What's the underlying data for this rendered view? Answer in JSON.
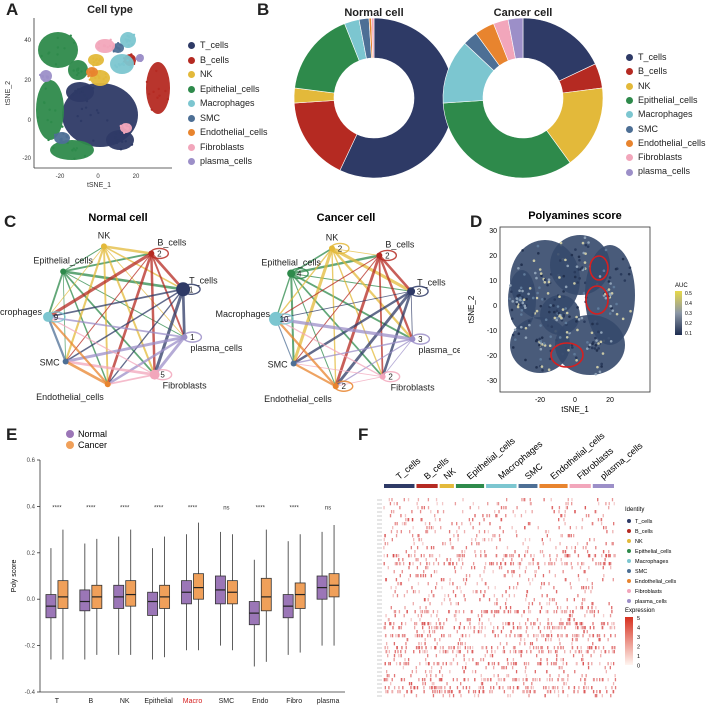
{
  "panel_letters": {
    "A": "A",
    "B": "B",
    "C": "C",
    "D": "D",
    "E": "E",
    "F": "F"
  },
  "colors": {
    "T_cells": "#2e3a66",
    "B_cells": "#b52a22",
    "NK": "#e3b93a",
    "Epithelial_cells": "#2e8a4b",
    "Macrophages": "#7cc6d0",
    "SMC": "#4d6f95",
    "Endothelial_cells": "#e8842e",
    "Fibroblasts": "#f2a6bb",
    "plasma_cells": "#9c8fc8",
    "normal": "#9b76b7",
    "cancer": "#f0a05a"
  },
  "cell_types": [
    "T_cells",
    "B_cells",
    "NK",
    "Epithelial_cells",
    "Macrophages",
    "SMC",
    "Endothelial_cells",
    "Fibroblasts",
    "plasma_cells"
  ],
  "panelA": {
    "title": "Cell type",
    "xlabel": "tSNE_1",
    "ylabel": "tSNE_2",
    "xticks": [
      "-20",
      "0",
      "20"
    ],
    "yticks": [
      "40",
      "20",
      "0",
      "-20"
    ]
  },
  "panelD": {
    "title": "Polyamines score",
    "xlabel": "tSNE_1",
    "ylabel": "tSNE_2",
    "xticks": [
      "-20",
      "0",
      "20"
    ],
    "yticks": [
      "30",
      "20",
      "10",
      "0",
      "-10",
      "-20",
      "-30"
    ],
    "legend_title": "AUC",
    "legend_ticks": [
      "0.5",
      "0.4",
      "0.3",
      "0.2",
      "0.1"
    ]
  },
  "panelC": {
    "titles": [
      "Normal cell",
      "Cancer cell"
    ],
    "normal_labels": [
      "Epithelial_cells",
      "NK",
      "B_cells",
      "T_cells",
      "plasma_cells",
      "Fibroblasts",
      "Endothelial_cells",
      "SMC",
      "Macrophages"
    ],
    "normal_counts": [
      "9",
      "2",
      "1",
      "1",
      "5"
    ],
    "cancer_labels": [
      "Epithelial_cells",
      "NK",
      "B_cells",
      "T_cells",
      "plasma_cells",
      "Fibroblasts",
      "Endothelial_cells",
      "SMC",
      "Macrophages"
    ],
    "cancer_counts": [
      "4",
      "2",
      "2",
      "3",
      "3",
      "2",
      "2",
      "10"
    ]
  },
  "panelF": {
    "legend_title": "Identity",
    "expr_title": "Expression",
    "expr_ticks": [
      "5",
      "4",
      "3",
      "2",
      "1",
      "0"
    ]
  },
  "chart_data": [
    {
      "type": "pie",
      "title": "Normal cell",
      "donut": true,
      "categories": [
        "T_cells",
        "B_cells",
        "NK",
        "Epithelial_cells",
        "Macrophages",
        "SMC",
        "Endothelial_cells",
        "Fibroblasts",
        "plasma_cells"
      ],
      "values": [
        57,
        17,
        3,
        17,
        3,
        2,
        0.5,
        0.5,
        0
      ]
    },
    {
      "type": "pie",
      "title": "Cancer cell",
      "donut": true,
      "categories": [
        "T_cells",
        "B_cells",
        "NK",
        "Epithelial_cells",
        "Macrophages",
        "SMC",
        "Endothelial_cells",
        "Fibroblasts",
        "plasma_cells"
      ],
      "values": [
        18,
        5,
        17,
        34,
        13,
        3,
        4,
        3,
        3
      ]
    },
    {
      "type": "bar",
      "subtype": "boxplot",
      "categories": [
        "T",
        "B",
        "NK",
        "Epithelial",
        "Macro",
        "SMC",
        "Endo",
        "Fibro",
        "plasma"
      ],
      "highlight_category": "Macro",
      "ylabel": "Poly score",
      "ylim": [
        -0.4,
        0.6
      ],
      "yticks": [
        "0.6",
        "0.4",
        "0.2",
        "0.0",
        "-0.2",
        "-0.4"
      ],
      "significance": [
        "****",
        "****",
        "****",
        "****",
        "****",
        "ns",
        "****",
        "****",
        "ns"
      ],
      "series": [
        {
          "name": "Normal",
          "median": [
            -0.03,
            -0.01,
            0.01,
            -0.01,
            0.03,
            0.04,
            -0.06,
            -0.03,
            0.05
          ],
          "q1": [
            -0.08,
            -0.05,
            -0.04,
            -0.07,
            -0.02,
            -0.02,
            -0.11,
            -0.08,
            0.0
          ],
          "q3": [
            0.02,
            0.04,
            0.06,
            0.03,
            0.08,
            0.1,
            -0.01,
            0.02,
            0.1
          ],
          "lo": [
            -0.26,
            -0.26,
            -0.24,
            -0.26,
            -0.22,
            -0.2,
            -0.29,
            -0.24,
            -0.2
          ],
          "hi": [
            0.22,
            0.24,
            0.27,
            0.22,
            0.28,
            0.29,
            0.17,
            0.25,
            0.29
          ]
        },
        {
          "name": "Cancer",
          "median": [
            0.01,
            0.01,
            0.02,
            0.01,
            0.05,
            0.03,
            0.01,
            0.02,
            0.06
          ],
          "q1": [
            -0.04,
            -0.04,
            -0.03,
            -0.04,
            0.0,
            -0.02,
            -0.05,
            -0.04,
            0.01
          ],
          "q3": [
            0.08,
            0.06,
            0.08,
            0.06,
            0.11,
            0.08,
            0.09,
            0.07,
            0.11
          ],
          "lo": [
            -0.26,
            -0.24,
            -0.24,
            -0.25,
            -0.22,
            -0.22,
            -0.27,
            -0.23,
            -0.2
          ],
          "hi": [
            0.3,
            0.26,
            0.3,
            0.27,
            0.33,
            0.28,
            0.3,
            0.28,
            0.32
          ]
        }
      ]
    }
  ]
}
